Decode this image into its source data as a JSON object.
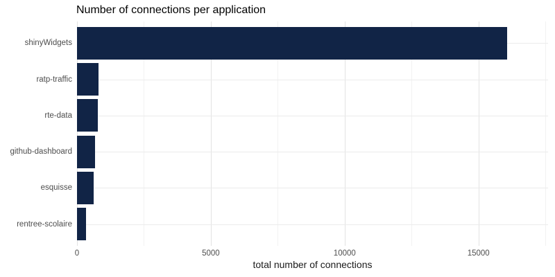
{
  "chart_data": {
    "type": "bar",
    "orientation": "horizontal",
    "title": "Number of connections per application",
    "xlabel": "total number of connections",
    "ylabel": "",
    "categories": [
      "shinyWidgets",
      "ratp-traffic",
      "rte-data",
      "github-dashboard",
      "esquisse",
      "rentree-scolaire"
    ],
    "values": [
      16060,
      810,
      770,
      665,
      620,
      335
    ],
    "xlim": [
      0,
      17600
    ],
    "x_major_ticks": [
      0,
      5000,
      10000,
      15000
    ],
    "x_tick_labels": [
      "0",
      "5000",
      "10000",
      "15000"
    ],
    "x_minor_ticks": [
      2500,
      7500,
      12500,
      17500
    ],
    "grid": "on",
    "legend": "none",
    "colors": {
      "bar": "#112446",
      "major_grid": "#e2e2e2",
      "minor_grid": "#f2f2f2",
      "row_grid": "#ebebeb",
      "axis_text": "#4d4d4d",
      "title_text": "#000000",
      "background": "#ffffff"
    }
  }
}
